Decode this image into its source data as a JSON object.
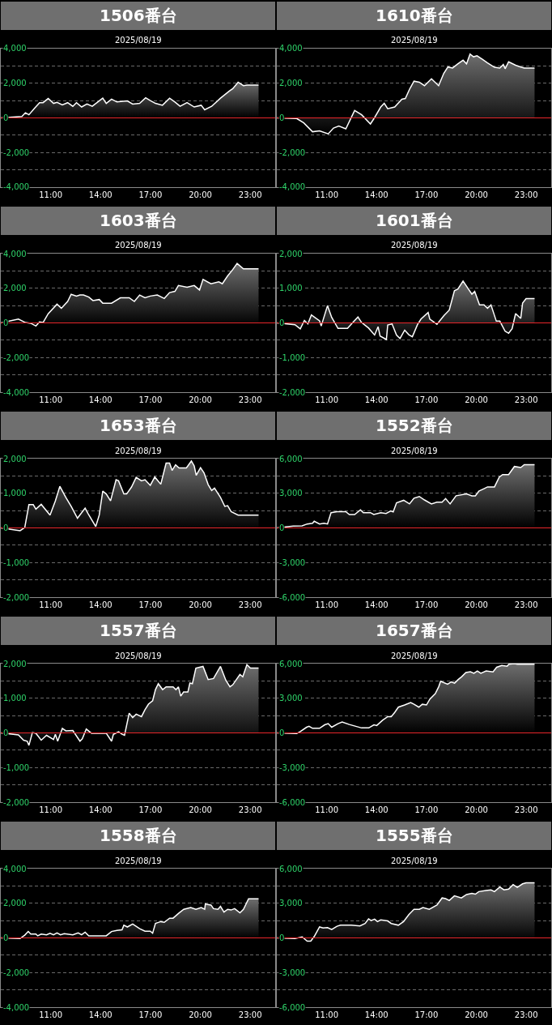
{
  "chart_data": [
    {
      "type": "area",
      "title": "1506番台",
      "subtitle": "2025/08/19",
      "xlim": [
        8,
        24.5
      ],
      "xticks": [
        {
          "value": 11,
          "label": "11:00"
        },
        {
          "value": 14,
          "label": "14:00"
        },
        {
          "value": 17,
          "label": "17:00"
        },
        {
          "value": 20,
          "label": "20:00"
        },
        {
          "value": 23,
          "label": "23:00"
        }
      ],
      "ylim": [
        -4000,
        4000
      ],
      "yticks": [
        {
          "value": -4000,
          "label": "-4,000"
        },
        {
          "value": -3000,
          "label": null
        },
        {
          "value": -2000,
          "label": "-2,000"
        },
        {
          "value": -1000,
          "label": null
        },
        0,
        {
          "value": 1000,
          "label": null
        },
        {
          "value": 2000,
          "label": "2,000"
        },
        {
          "value": 3000,
          "label": null
        },
        {
          "value": 4000,
          "label": "4,000"
        }
      ],
      "grid": "y",
      "ref_lines": [
        {
          "axis": "y",
          "value": 0,
          "color": "#e8262a"
        }
      ],
      "x": [
        8.0,
        9.27,
        9.48,
        9.69,
        10.0,
        10.33,
        10.54,
        10.85,
        11.17,
        11.38,
        11.7,
        12.02,
        12.33,
        12.55,
        12.86,
        13.18,
        13.5,
        14.13,
        14.34,
        14.66,
        14.98,
        15.61,
        15.93,
        16.35,
        16.71,
        16.99,
        17.3,
        17.72,
        18.15,
        18.47,
        18.78,
        19.2,
        19.63,
        20.05,
        20.26,
        20.68,
        21.21,
        21.74,
        21.95,
        22.27,
        22.59,
        22.8,
        23.5
      ],
      "series": [
        {
          "color": "#ffffff",
          "values": [
            0,
            80,
            300,
            180,
            530,
            880,
            880,
            1120,
            840,
            900,
            750,
            880,
            670,
            880,
            630,
            800,
            670,
            1140,
            840,
            1080,
            920,
            980,
            800,
            840,
            1160,
            1000,
            840,
            730,
            1140,
            920,
            670,
            880,
            630,
            730,
            470,
            670,
            1140,
            1550,
            1690,
            2060,
            1860,
            1900,
            1900
          ]
        }
      ]
    },
    {
      "type": "area",
      "title": "1610番台",
      "subtitle": "2025/08/19",
      "xlim": [
        8,
        24.5
      ],
      "xticks": [
        {
          "value": 11,
          "label": "11:00"
        },
        {
          "value": 14,
          "label": "14:00"
        },
        {
          "value": 17,
          "label": "17:00"
        },
        {
          "value": 20,
          "label": "20:00"
        },
        {
          "value": 23,
          "label": "23:00"
        }
      ],
      "ylim": [
        -4000,
        4000
      ],
      "yticks": [
        {
          "value": -4000,
          "label": "-4,000"
        },
        {
          "value": -3000,
          "label": null
        },
        {
          "value": -2000,
          "label": "-2,000"
        },
        {
          "value": -1000,
          "label": null
        },
        0,
        {
          "value": 1000,
          "label": null
        },
        {
          "value": 2000,
          "label": "2,000"
        },
        {
          "value": 3000,
          "label": null
        },
        {
          "value": 4000,
          "label": "4,000"
        }
      ],
      "grid": "y",
      "ref_lines": [
        {
          "axis": "y",
          "value": 0,
          "color": "#e8262a"
        }
      ],
      "x": [
        8.0,
        9.2,
        9.62,
        10.15,
        10.57,
        11.09,
        11.41,
        11.73,
        12.15,
        12.68,
        13.1,
        13.63,
        13.83,
        14.25,
        14.46,
        14.67,
        15.09,
        15.52,
        15.73,
        15.98,
        16.25,
        16.57,
        16.88,
        17.3,
        17.73,
        18.04,
        18.29,
        18.57,
        18.88,
        19.2,
        19.41,
        19.62,
        19.83,
        20.04,
        20.36,
        20.67,
        21.09,
        21.41,
        21.62,
        21.73,
        21.94,
        22.36,
        22.67,
        22.88,
        23.5
      ],
      "series": [
        {
          "color": "#ffffff",
          "values": [
            0,
            -40,
            -290,
            -800,
            -750,
            -920,
            -590,
            -470,
            -630,
            430,
            180,
            -350,
            -60,
            630,
            840,
            530,
            630,
            1080,
            1120,
            1650,
            2120,
            2060,
            1860,
            2260,
            1860,
            2570,
            2940,
            2880,
            3120,
            3330,
            3120,
            3690,
            3530,
            3590,
            3390,
            3180,
            2920,
            2880,
            3080,
            2840,
            3240,
            3040,
            2940,
            2880,
            2880
          ]
        }
      ]
    },
    {
      "type": "area",
      "title": "1603番台",
      "subtitle": "2025/08/19",
      "xlim": [
        8,
        24.5
      ],
      "xticks": [
        {
          "value": 11,
          "label": "11:00"
        },
        {
          "value": 14,
          "label": "14:00"
        },
        {
          "value": 17,
          "label": "17:00"
        },
        {
          "value": 20,
          "label": "20:00"
        },
        {
          "value": 23,
          "label": "23:00"
        }
      ],
      "ylim": [
        -4000,
        4000
      ],
      "yticks": [
        {
          "value": -4000,
          "label": "-4,000"
        },
        {
          "value": -3000,
          "label": null
        },
        {
          "value": -2000,
          "label": "-2,000"
        },
        {
          "value": -1000,
          "label": null
        },
        0,
        {
          "value": 1000,
          "label": null
        },
        {
          "value": 2000,
          "label": "2,000"
        },
        {
          "value": 3000,
          "label": null
        },
        {
          "value": 4000,
          "label": "4,000"
        }
      ],
      "grid": "y",
      "ref_lines": [
        {
          "axis": "y",
          "value": 0,
          "color": "#e8262a"
        }
      ],
      "x": [
        8.0,
        9.06,
        9.48,
        9.8,
        10.11,
        10.33,
        10.54,
        10.85,
        11.38,
        11.64,
        12.02,
        12.23,
        12.55,
        12.76,
        12.97,
        13.29,
        13.54,
        13.92,
        14.13,
        14.66,
        15.19,
        15.72,
        16.03,
        16.35,
        16.67,
        16.99,
        17.41,
        17.83,
        18.15,
        18.47,
        18.68,
        19.2,
        19.63,
        19.95,
        20.16,
        20.64,
        21.11,
        21.32,
        21.64,
        21.95,
        22.21,
        22.59,
        23.5
      ],
      "series": [
        {
          "color": "#ffffff",
          "values": [
            0,
            220,
            20,
            -20,
            -180,
            60,
            20,
            530,
            1080,
            840,
            1240,
            1650,
            1550,
            1610,
            1610,
            1490,
            1290,
            1350,
            1140,
            1140,
            1450,
            1450,
            1240,
            1610,
            1450,
            1550,
            1610,
            1410,
            1750,
            1820,
            2160,
            2060,
            2160,
            1900,
            2510,
            2260,
            2370,
            2260,
            2710,
            3080,
            3430,
            3120,
            3120
          ]
        }
      ]
    },
    {
      "type": "area",
      "title": "1601番台",
      "subtitle": "2025/08/19",
      "xlim": [
        8,
        24.5
      ],
      "xticks": [
        {
          "value": 11,
          "label": "11:00"
        },
        {
          "value": 14,
          "label": "14:00"
        },
        {
          "value": 17,
          "label": "17:00"
        },
        {
          "value": 20,
          "label": "20:00"
        },
        {
          "value": 23,
          "label": "23:00"
        }
      ],
      "ylim": [
        -2000,
        2000
      ],
      "yticks": [
        {
          "value": -2000,
          "label": "-2,000"
        },
        {
          "value": -1500,
          "label": null
        },
        {
          "value": -1000,
          "label": "-1,000"
        },
        {
          "value": -500,
          "label": null
        },
        0,
        {
          "value": 500,
          "label": null
        },
        {
          "value": 1000,
          "label": "1,000"
        },
        {
          "value": 1500,
          "label": null
        },
        {
          "value": 2000,
          "label": "2,000"
        }
      ],
      "grid": "y",
      "ref_lines": [
        {
          "axis": "y",
          "value": 0,
          "color": "#e8262a"
        }
      ],
      "x": [
        8.0,
        9.09,
        9.41,
        9.66,
        9.87,
        10.08,
        10.36,
        10.57,
        10.67,
        11.05,
        11.3,
        11.68,
        12.25,
        12.57,
        12.88,
        13.1,
        13.52,
        13.88,
        14.09,
        14.21,
        14.59,
        14.67,
        14.93,
        15.2,
        15.41,
        15.69,
        15.94,
        16.15,
        16.46,
        16.67,
        17.1,
        17.2,
        17.63,
        18.05,
        18.37,
        18.68,
        18.89,
        19.2,
        19.52,
        19.73,
        19.9,
        20.19,
        20.46,
        20.67,
        20.88,
        21.2,
        21.41,
        21.73,
        21.94,
        22.15,
        22.36,
        22.67,
        22.78,
        22.99,
        23.5
      ],
      "series": [
        {
          "color": "#ffffff",
          "values": [
            0,
            -50,
            -170,
            70,
            -30,
            230,
            130,
            60,
            -90,
            500,
            160,
            -160,
            -160,
            10,
            170,
            10,
            -150,
            -350,
            -110,
            -380,
            -480,
            -60,
            -30,
            -350,
            -450,
            -210,
            -340,
            -400,
            -50,
            110,
            300,
            110,
            -40,
            210,
            370,
            930,
            980,
            1210,
            980,
            830,
            910,
            520,
            520,
            420,
            520,
            50,
            50,
            -240,
            -300,
            -170,
            270,
            130,
            570,
            700,
            700
          ]
        }
      ]
    },
    {
      "type": "area",
      "title": "1653番台",
      "subtitle": "2025/08/19",
      "xlim": [
        8,
        24.5
      ],
      "xticks": [
        {
          "value": 11,
          "label": "11:00"
        },
        {
          "value": 14,
          "label": "14:00"
        },
        {
          "value": 17,
          "label": "17:00"
        },
        {
          "value": 20,
          "label": "20:00"
        },
        {
          "value": 23,
          "label": "23:00"
        }
      ],
      "ylim": [
        -2000,
        2000
      ],
      "yticks": [
        {
          "value": -2000,
          "label": "-2,000"
        },
        {
          "value": -1500,
          "label": null
        },
        {
          "value": -1000,
          "label": "-1,000"
        },
        {
          "value": -500,
          "label": null
        },
        0,
        {
          "value": 500,
          "label": null
        },
        {
          "value": 1000,
          "label": "1,000"
        },
        {
          "value": 1500,
          "label": null
        },
        {
          "value": 2000,
          "label": "2,000"
        }
      ],
      "grid": "y",
      "ref_lines": [
        {
          "axis": "y",
          "value": 0,
          "color": "#e8262a"
        }
      ],
      "x": [
        8.0,
        9.16,
        9.44,
        9.69,
        9.95,
        10.11,
        10.43,
        10.96,
        11.28,
        11.55,
        11.91,
        12.23,
        12.61,
        13.07,
        13.24,
        13.71,
        13.92,
        14.13,
        14.34,
        14.6,
        14.93,
        15.08,
        15.4,
        15.57,
        15.86,
        16.14,
        16.46,
        16.67,
        16.99,
        17.26,
        17.62,
        17.94,
        18.15,
        18.3,
        18.51,
        18.72,
        19.16,
        19.46,
        19.63,
        19.75,
        20.01,
        20.22,
        20.47,
        20.68,
        20.85,
        21.21,
        21.47,
        21.64,
        21.85,
        22.27,
        23.5
      ],
      "series": [
        {
          "color": "#ffffff",
          "values": [
            0,
            -80,
            10,
            670,
            670,
            540,
            680,
            370,
            780,
            1200,
            880,
            620,
            280,
            570,
            420,
            40,
            370,
            1060,
            980,
            780,
            1390,
            1360,
            980,
            980,
            1180,
            1460,
            1360,
            1390,
            1230,
            1470,
            1260,
            1870,
            1870,
            1660,
            1820,
            1730,
            1730,
            1930,
            1790,
            1520,
            1740,
            1590,
            1250,
            1080,
            1150,
            880,
            620,
            640,
            470,
            370,
            370
          ]
        }
      ]
    },
    {
      "type": "area",
      "title": "1552番台",
      "subtitle": "2025/08/19",
      "xlim": [
        8,
        24.5
      ],
      "xticks": [
        {
          "value": 11,
          "label": "11:00"
        },
        {
          "value": 14,
          "label": "14:00"
        },
        {
          "value": 17,
          "label": "17:00"
        },
        {
          "value": 20,
          "label": "20:00"
        },
        {
          "value": 23,
          "label": "23:00"
        }
      ],
      "ylim": [
        -6000,
        6000
      ],
      "yticks": [
        {
          "value": -6000,
          "label": "-6,000"
        },
        {
          "value": -4500,
          "label": null
        },
        {
          "value": -3000,
          "label": "-3,000"
        },
        {
          "value": -1500,
          "label": null
        },
        0,
        {
          "value": 1500,
          "label": null
        },
        {
          "value": 3000,
          "label": "3,000"
        },
        {
          "value": 4500,
          "label": null
        },
        {
          "value": 6000,
          "label": "6,000"
        }
      ],
      "grid": "y",
      "ref_lines": [
        {
          "axis": "y",
          "value": 0,
          "color": "#e8262a"
        }
      ],
      "x": [
        8.0,
        8.99,
        9.52,
        9.83,
        10.15,
        10.25,
        10.57,
        10.84,
        11.05,
        11.26,
        11.62,
        12.15,
        12.36,
        12.68,
        13.03,
        13.2,
        13.63,
        13.83,
        14.25,
        14.57,
        14.85,
        15.0,
        15.2,
        15.63,
        15.98,
        16.25,
        16.57,
        16.88,
        17.3,
        17.62,
        17.94,
        18.15,
        18.42,
        18.78,
        19.41,
        19.73,
        19.94,
        20.15,
        20.46,
        20.67,
        21.09,
        21.38,
        21.58,
        21.94,
        22.29,
        22.67,
        22.88,
        23.5
      ],
      "series": [
        {
          "color": "#ffffff",
          "values": [
            0,
            150,
            180,
            340,
            400,
            580,
            340,
            400,
            340,
            1320,
            1410,
            1410,
            1160,
            1160,
            1560,
            1320,
            1320,
            1160,
            1320,
            1250,
            1470,
            1380,
            2170,
            2390,
            2080,
            2570,
            2720,
            2420,
            2080,
            2230,
            2230,
            2540,
            2080,
            2780,
            2940,
            2780,
            2780,
            3180,
            3400,
            3550,
            3550,
            4410,
            4620,
            4620,
            5320,
            5230,
            5480,
            5480
          ]
        }
      ]
    },
    {
      "type": "area",
      "title": "1557番台",
      "subtitle": "2025/08/19",
      "xlim": [
        8,
        24.5
      ],
      "xticks": [
        {
          "value": 11,
          "label": "11:00"
        },
        {
          "value": 14,
          "label": "14:00"
        },
        {
          "value": 17,
          "label": "17:00"
        },
        {
          "value": 20,
          "label": "20:00"
        },
        {
          "value": 23,
          "label": "23:00"
        }
      ],
      "ylim": [
        -2000,
        2000
      ],
      "yticks": [
        {
          "value": -2000,
          "label": "-2,000"
        },
        {
          "value": -1500,
          "label": null
        },
        {
          "value": -1000,
          "label": "-1,000"
        },
        {
          "value": -500,
          "label": null
        },
        0,
        {
          "value": 500,
          "label": null
        },
        {
          "value": 1000,
          "label": "1,000"
        },
        {
          "value": 1500,
          "label": null
        },
        {
          "value": 2000,
          "label": "2,000"
        }
      ],
      "grid": "y",
      "ref_lines": [
        {
          "axis": "y",
          "value": 0,
          "color": "#e8262a"
        }
      ],
      "x": [
        8.0,
        9.06,
        9.37,
        9.59,
        9.69,
        9.9,
        10.11,
        10.43,
        10.75,
        11.17,
        11.28,
        11.42,
        11.7,
        11.91,
        12.33,
        12.76,
        12.9,
        13.14,
        13.45,
        14.34,
        14.66,
        14.77,
        15.08,
        15.29,
        15.44,
        15.72,
        15.93,
        16.14,
        16.46,
        16.67,
        16.88,
        17.13,
        17.3,
        17.47,
        17.73,
        17.94,
        18.36,
        18.53,
        18.68,
        18.82,
        18.99,
        19.25,
        19.37,
        19.52,
        19.73,
        20.16,
        20.47,
        20.79,
        21.21,
        21.53,
        21.78,
        21.95,
        22.38,
        22.55,
        22.8,
        23.01,
        23.5
      ],
      "series": [
        {
          "color": "#ffffff",
          "values": [
            0,
            -60,
            -210,
            -240,
            -360,
            10,
            -10,
            -210,
            -70,
            -190,
            -40,
            -240,
            130,
            60,
            70,
            -240,
            -170,
            110,
            -10,
            -10,
            -240,
            -40,
            30,
            -40,
            -70,
            570,
            440,
            540,
            470,
            670,
            830,
            930,
            1250,
            1420,
            1250,
            1330,
            1330,
            1250,
            1330,
            1060,
            1180,
            1180,
            1440,
            1420,
            1870,
            1920,
            1540,
            1570,
            1920,
            1520,
            1330,
            1390,
            1690,
            1620,
            1970,
            1870,
            1870
          ]
        }
      ]
    },
    {
      "type": "area",
      "title": "1657番台",
      "subtitle": "2025/08/19",
      "xlim": [
        8,
        24.5
      ],
      "xticks": [
        {
          "value": 11,
          "label": "11:00"
        },
        {
          "value": 14,
          "label": "14:00"
        },
        {
          "value": 17,
          "label": "17:00"
        },
        {
          "value": 20,
          "label": "20:00"
        },
        {
          "value": 23,
          "label": "23:00"
        }
      ],
      "ylim": [
        -6000,
        6000
      ],
      "yticks": [
        {
          "value": -6000,
          "label": "-6,000"
        },
        {
          "value": -4500,
          "label": null
        },
        {
          "value": -3000,
          "label": "-3,000"
        },
        {
          "value": -1500,
          "label": null
        },
        0,
        {
          "value": 1500,
          "label": null
        },
        {
          "value": 3000,
          "label": "3,000"
        },
        {
          "value": 4500,
          "label": null
        },
        {
          "value": 6000,
          "label": "6,000"
        }
      ],
      "grid": "y",
      "ref_lines": [
        {
          "axis": "y",
          "value": 0,
          "color": "#e8262a"
        }
      ],
      "x": [
        8.0,
        9.2,
        9.41,
        9.79,
        9.94,
        10.15,
        10.57,
        10.88,
        11.09,
        11.3,
        11.68,
        11.93,
        12.36,
        13.1,
        13.53,
        13.84,
        14.01,
        14.36,
        14.67,
        14.88,
        15.09,
        15.31,
        15.69,
        16.05,
        16.25,
        16.54,
        16.75,
        17.0,
        17.21,
        17.53,
        17.74,
        17.85,
        18.27,
        18.48,
        18.69,
        18.91,
        19.12,
        19.37,
        19.64,
        19.85,
        20.06,
        20.27,
        20.59,
        21.0,
        21.22,
        21.53,
        21.85,
        21.96,
        22.27,
        22.48,
        23.5
      ],
      "series": [
        {
          "color": "#ffffff",
          "values": [
            0,
            -60,
            120,
            490,
            580,
            400,
            400,
            700,
            800,
            490,
            800,
            950,
            730,
            430,
            430,
            700,
            640,
            1100,
            1410,
            1410,
            1770,
            2230,
            2420,
            2630,
            2480,
            2230,
            2480,
            2420,
            2940,
            3400,
            4010,
            4470,
            4220,
            4410,
            4310,
            4620,
            4870,
            5230,
            5290,
            5170,
            5360,
            5170,
            5360,
            5290,
            5690,
            5840,
            5780,
            5950,
            6000,
            5950,
            5950
          ]
        }
      ]
    },
    {
      "type": "area",
      "title": "1558番台",
      "subtitle": "2025/08/19",
      "xlim": [
        8,
        24.5
      ],
      "xticks": [
        {
          "value": 11,
          "label": "11:00"
        },
        {
          "value": 14,
          "label": "14:00"
        },
        {
          "value": 17,
          "label": "17:00"
        },
        {
          "value": 20,
          "label": "20:00"
        },
        {
          "value": 23,
          "label": "23:00"
        }
      ],
      "ylim": [
        -4000,
        4000
      ],
      "yticks": [
        {
          "value": -4000,
          "label": "-4,000"
        },
        {
          "value": -3000,
          "label": null
        },
        {
          "value": -2000,
          "label": "-2,000"
        },
        {
          "value": -1000,
          "label": null
        },
        0,
        {
          "value": 1000,
          "label": null
        },
        {
          "value": 2000,
          "label": "2,000"
        },
        {
          "value": 3000,
          "label": null
        },
        {
          "value": 4000,
          "label": "4,000"
        }
      ],
      "grid": "y",
      "ref_lines": [
        {
          "axis": "y",
          "value": 0,
          "color": "#e8262a"
        }
      ],
      "x": [
        8.0,
        9.16,
        9.44,
        9.65,
        9.8,
        10.11,
        10.22,
        10.43,
        10.75,
        10.96,
        11.17,
        11.38,
        11.59,
        11.81,
        12.33,
        12.65,
        12.86,
        13.07,
        13.29,
        14.34,
        14.66,
        14.98,
        15.29,
        15.4,
        15.61,
        15.93,
        16.35,
        16.67,
        16.99,
        17.13,
        17.3,
        17.62,
        17.83,
        18.15,
        18.36,
        18.68,
        19.0,
        19.42,
        19.73,
        20.05,
        20.26,
        20.3,
        20.64,
        20.79,
        21.06,
        21.21,
        21.42,
        21.64,
        21.85,
        22.06,
        22.38,
        22.59,
        22.9,
        23.01,
        23.5
      ],
      "series": [
        {
          "color": "#ffffff",
          "values": [
            0,
            -40,
            160,
            370,
            220,
            220,
            120,
            220,
            180,
            270,
            180,
            290,
            180,
            240,
            180,
            290,
            180,
            330,
            120,
            120,
            370,
            430,
            470,
            730,
            630,
            800,
            530,
            390,
            390,
            270,
            840,
            940,
            900,
            1140,
            1140,
            1410,
            1650,
            1750,
            1650,
            1750,
            1650,
            1960,
            1900,
            1690,
            1650,
            1820,
            1490,
            1650,
            1610,
            1690,
            1450,
            1650,
            2260,
            2260,
            2260
          ]
        }
      ]
    },
    {
      "type": "area",
      "title": "1555番台",
      "subtitle": "2025/08/19",
      "xlim": [
        8,
        24.5
      ],
      "xticks": [
        {
          "value": 11,
          "label": "11:00"
        },
        {
          "value": 14,
          "label": "14:00"
        },
        {
          "value": 17,
          "label": "17:00"
        },
        {
          "value": 20,
          "label": "20:00"
        },
        {
          "value": 23,
          "label": "23:00"
        }
      ],
      "ylim": [
        -6000,
        6000
      ],
      "yticks": [
        {
          "value": -6000,
          "label": "-6,000"
        },
        {
          "value": -4500,
          "label": null
        },
        {
          "value": -3000,
          "label": "-3,000"
        },
        {
          "value": -1500,
          "label": null
        },
        0,
        {
          "value": 1500,
          "label": null
        },
        {
          "value": 3000,
          "label": "3,000"
        },
        {
          "value": 4500,
          "label": null
        },
        {
          "value": 6000,
          "label": "6,000"
        }
      ],
      "grid": "y",
      "ref_lines": [
        {
          "axis": "y",
          "value": 0,
          "color": "#e8262a"
        }
      ],
      "x": [
        8.0,
        9.09,
        9.52,
        9.83,
        10.04,
        10.25,
        10.57,
        10.78,
        11.05,
        11.3,
        11.62,
        11.83,
        12.47,
        13.0,
        13.31,
        13.52,
        13.67,
        13.88,
        14.05,
        14.25,
        14.67,
        14.88,
        15.31,
        15.62,
        15.94,
        16.25,
        16.57,
        16.79,
        17.17,
        17.63,
        17.94,
        18.15,
        18.37,
        18.68,
        19.1,
        19.41,
        19.73,
        19.94,
        20.15,
        20.57,
        20.88,
        21.09,
        21.41,
        21.66,
        21.94,
        22.21,
        22.46,
        22.78,
        22.99,
        23.5
      ],
      "series": [
        {
          "color": "#ffffff",
          "values": [
            0,
            -60,
            90,
            -280,
            -280,
            120,
            950,
            860,
            890,
            730,
            1010,
            1100,
            1100,
            1040,
            1250,
            1650,
            1500,
            1620,
            1410,
            1560,
            1470,
            1250,
            1100,
            1410,
            2020,
            2480,
            2480,
            2630,
            2480,
            2850,
            3460,
            3400,
            3240,
            3640,
            3460,
            3760,
            3860,
            3790,
            4010,
            4100,
            4160,
            4010,
            4410,
            4160,
            4220,
            4620,
            4380,
            4680,
            4770,
            4770
          ]
        }
      ]
    }
  ]
}
